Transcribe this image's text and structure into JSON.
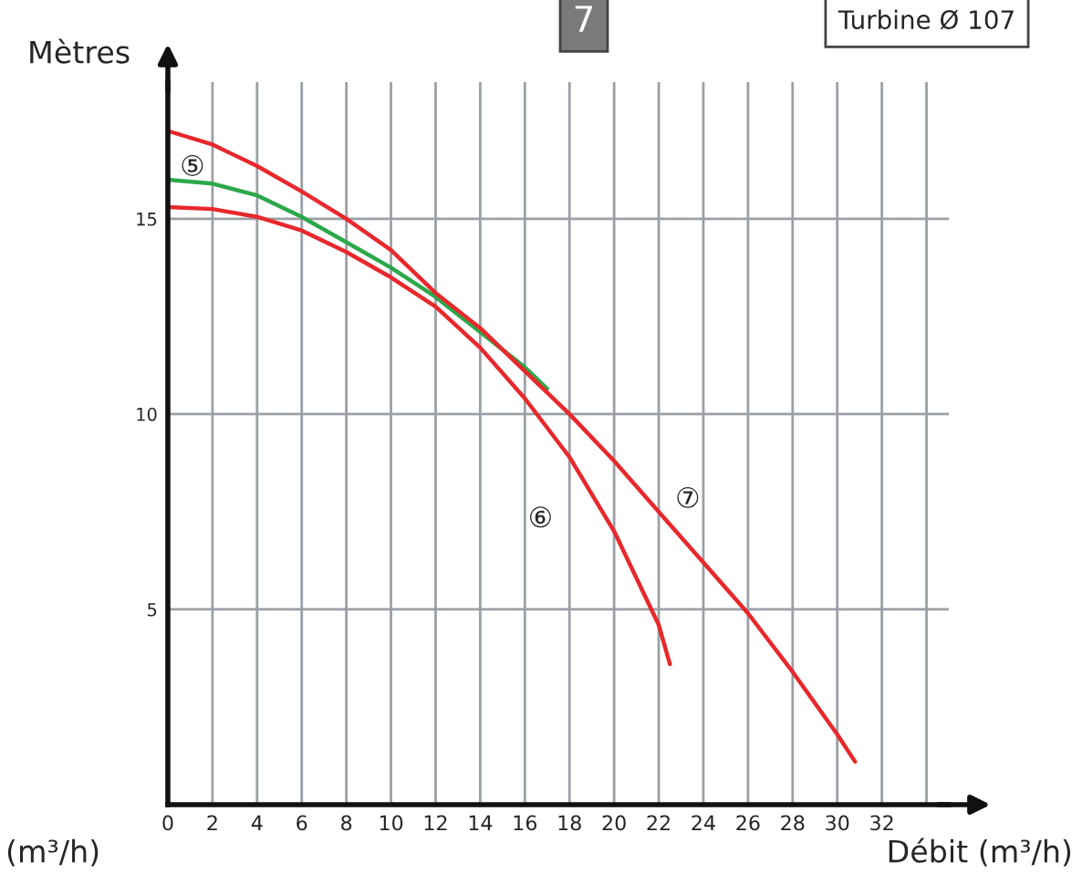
{
  "chart_data": {
    "type": "line",
    "ylabel": "Mètres",
    "xlabel": "Débit (m³/h)",
    "annotations": [
      "7",
      "Turbine Ø 107",
      "(m³/h)"
    ],
    "xlim": [
      0,
      35
    ],
    "ylim": [
      0,
      18.5
    ],
    "xticks": [
      0,
      2,
      4,
      6,
      8,
      10,
      12,
      14,
      16,
      18,
      20,
      22,
      24,
      26,
      28,
      30,
      32,
      {
        "value": 34,
        "label": null
      }
    ],
    "yticks": [
      5,
      10,
      15
    ],
    "grid": true,
    "legend": false,
    "marker": "none",
    "line_style": "solid",
    "series": [
      {
        "name": "⑤",
        "color": "#2ca84a",
        "x": [
          0,
          2,
          4,
          6,
          8,
          10,
          12,
          14,
          16,
          17
        ],
        "values": [
          16.0,
          15.9,
          15.6,
          15.05,
          14.4,
          13.75,
          13.0,
          12.1,
          11.2,
          10.65
        ]
      },
      {
        "name": "⑥",
        "color": "#e8282c",
        "x": [
          0,
          2,
          4,
          6,
          8,
          10,
          12,
          14,
          16,
          18,
          20,
          22,
          22.5
        ],
        "values": [
          15.3,
          15.25,
          15.05,
          14.7,
          14.15,
          13.5,
          12.75,
          11.7,
          10.4,
          8.9,
          7.0,
          4.6,
          3.6
        ]
      },
      {
        "name": "⑦",
        "color": "#e8282c",
        "x": [
          0,
          2,
          4,
          6,
          8,
          10,
          12,
          14,
          16,
          18,
          20,
          22,
          24,
          26,
          28,
          30,
          30.8
        ],
        "values": [
          17.25,
          16.9,
          16.35,
          15.7,
          15.0,
          14.2,
          13.1,
          12.2,
          11.1,
          10.0,
          8.8,
          7.5,
          6.2,
          4.9,
          3.4,
          1.8,
          1.1
        ]
      }
    ]
  }
}
